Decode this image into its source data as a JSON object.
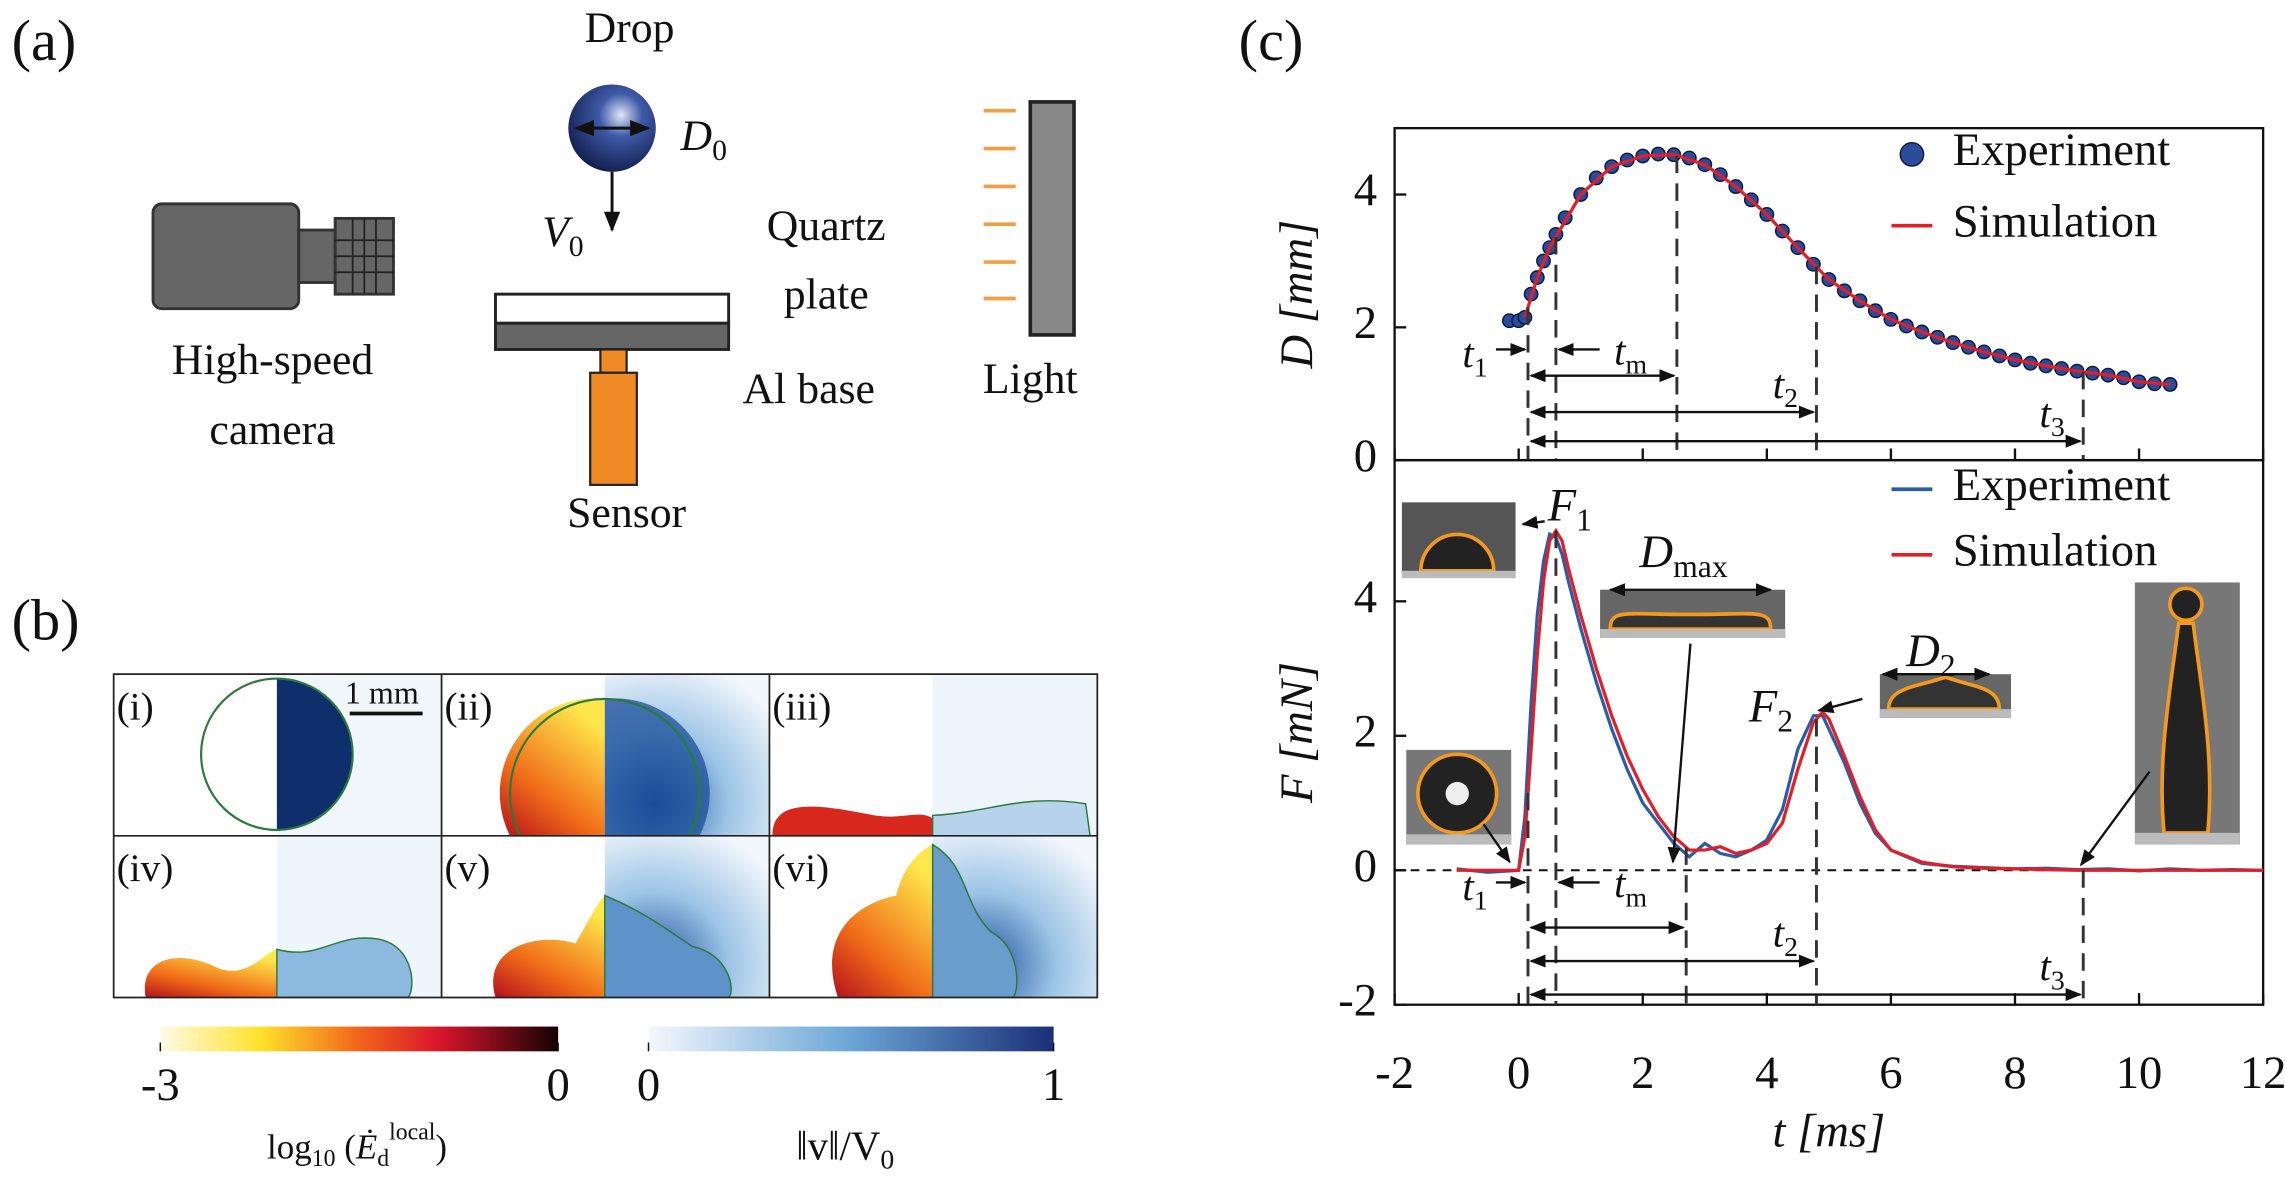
{
  "panel_a": {
    "label": "(a)",
    "drop": "Drop",
    "diameter": {
      "main": "D",
      "sub": "0"
    },
    "velocity": {
      "main": "V",
      "sub": "0"
    },
    "plate": [
      "Quartz",
      "plate"
    ],
    "camera": [
      "High-speed",
      "camera"
    ],
    "base": "Al base",
    "light": "Light",
    "sensor": "Sensor"
  },
  "panel_b": {
    "label": "(b)",
    "subpanels": [
      "(i)",
      "(ii)",
      "(iii)",
      "(iv)",
      "(v)",
      "(vi)"
    ],
    "scale_bar": "1 mm",
    "colorbars": [
      {
        "ticks": [
          -3,
          0
        ],
        "label": {
          "text": "log",
          "sub": "10",
          "open": " (",
          "expr": "Ė",
          "expr_sub": "d",
          "expr_sup": "local",
          "close": ")"
        }
      },
      {
        "ticks": [
          0,
          1
        ],
        "label": {
          "text": "‖v‖/V",
          "sub": "0"
        }
      }
    ]
  },
  "panel_c": {
    "label": "(c)"
  },
  "chart_data": [
    {
      "type": "line",
      "ylabel": "D [mm]",
      "xlim": [
        -2,
        12
      ],
      "ylim": [
        0,
        5
      ],
      "yticks": [
        0,
        2,
        4
      ],
      "series": [
        {
          "name": "Experiment",
          "color": "#2b4c9b",
          "marker": "circle",
          "x": [
            -0.15,
            0,
            0.1,
            0.2,
            0.3,
            0.4,
            0.5,
            0.6,
            0.75,
            1,
            1.25,
            1.5,
            1.75,
            2,
            2.25,
            2.5,
            2.75,
            3,
            3.25,
            3.5,
            3.75,
            4,
            4.25,
            4.5,
            4.75,
            5,
            5.25,
            5.5,
            5.75,
            6,
            6.25,
            6.5,
            6.75,
            7,
            7.25,
            7.5,
            7.75,
            8,
            8.25,
            8.5,
            8.75,
            9,
            9.25,
            9.5,
            9.75,
            10,
            10.25,
            10.5
          ],
          "values": [
            2.1,
            2.1,
            2.15,
            2.5,
            2.75,
            3.0,
            3.2,
            3.4,
            3.65,
            4.0,
            4.25,
            4.42,
            4.52,
            4.58,
            4.61,
            4.6,
            4.55,
            4.45,
            4.3,
            4.12,
            3.92,
            3.7,
            3.45,
            3.2,
            2.95,
            2.72,
            2.55,
            2.4,
            2.25,
            2.12,
            2.02,
            1.93,
            1.85,
            1.77,
            1.7,
            1.63,
            1.57,
            1.51,
            1.46,
            1.42,
            1.38,
            1.34,
            1.31,
            1.28,
            1.24,
            1.18,
            1.15,
            1.14
          ]
        },
        {
          "name": "Simulation",
          "color": "#e41e26",
          "x": [
            0.1,
            0.3,
            0.5,
            1,
            1.5,
            2,
            2.5,
            3,
            3.5,
            4,
            4.5,
            5,
            5.5,
            6,
            6.5,
            7,
            7.5,
            8,
            8.5,
            9,
            9.5,
            10,
            10.5
          ],
          "values": [
            2.15,
            2.75,
            3.2,
            4.0,
            4.42,
            4.58,
            4.6,
            4.45,
            4.12,
            3.7,
            3.2,
            2.72,
            2.4,
            2.12,
            1.93,
            1.77,
            1.63,
            1.51,
            1.42,
            1.34,
            1.28,
            1.18,
            1.14
          ]
        }
      ],
      "vlines": [
        0.15,
        0.6,
        2.55,
        4.8,
        9.1
      ],
      "times": [
        {
          "main": "t",
          "sub": "1"
        },
        {
          "main": "t",
          "sub": "m"
        },
        {
          "main": "t",
          "sub": "2"
        },
        {
          "main": "t",
          "sub": "3"
        }
      ]
    },
    {
      "type": "line",
      "ylabel": "F [mN]",
      "xlabel": "t [ms]",
      "xlim": [
        -2,
        12
      ],
      "ylim": [
        -2,
        6.1
      ],
      "yticks": [
        -2,
        0,
        2,
        4
      ],
      "xticks": [
        -2,
        0,
        2,
        4,
        6,
        8,
        10,
        12
      ],
      "x": [
        -1,
        -0.5,
        0,
        0.1,
        0.2,
        0.3,
        0.4,
        0.5,
        0.6,
        0.7,
        0.8,
        1,
        1.25,
        1.5,
        1.75,
        2,
        2.25,
        2.5,
        2.75,
        3,
        3.25,
        3.5,
        3.75,
        4,
        4.25,
        4.5,
        4.75,
        4.9,
        5,
        5.25,
        5.5,
        5.75,
        6,
        6.5,
        7,
        7.5,
        8,
        8.5,
        9,
        9.5,
        10,
        10.5,
        11,
        11.5,
        12
      ],
      "series": [
        {
          "name": "Experiment",
          "color": "#2a5ca8",
          "values": [
            0.02,
            -0.03,
            0,
            0.8,
            2.5,
            3.8,
            4.6,
            5.0,
            4.95,
            4.7,
            4.3,
            3.6,
            2.8,
            2.1,
            1.5,
            1.0,
            0.7,
            0.4,
            0.2,
            0.4,
            0.25,
            0.2,
            0.3,
            0.45,
            0.9,
            1.8,
            2.3,
            2.3,
            2.1,
            1.6,
            1.0,
            0.55,
            0.3,
            0.1,
            0.06,
            0.04,
            0.02,
            0.03,
            0.01,
            0.02,
            -0.01,
            0.02,
            0,
            0.01,
            0
          ]
        },
        {
          "name": "Simulation",
          "color": "#e41e26",
          "values": [
            0,
            0,
            0,
            0.5,
            1.8,
            3.2,
            4.3,
            4.9,
            5.05,
            4.9,
            4.5,
            3.8,
            3.0,
            2.3,
            1.7,
            1.2,
            0.8,
            0.5,
            0.3,
            0.3,
            0.35,
            0.25,
            0.3,
            0.4,
            0.7,
            1.5,
            2.2,
            2.35,
            2.25,
            1.7,
            1.1,
            0.6,
            0.3,
            0.12,
            0.05,
            0.03,
            0.02,
            0.01,
            0,
            0,
            0,
            0,
            0,
            0,
            0
          ]
        }
      ],
      "vlines": [
        0.15,
        0.6,
        2.7,
        4.8,
        9.1
      ],
      "times": [
        {
          "main": "t",
          "sub": "1"
        },
        {
          "main": "t",
          "sub": "m"
        },
        {
          "main": "t",
          "sub": "2"
        },
        {
          "main": "t",
          "sub": "3"
        }
      ],
      "peaks": [
        {
          "main": "F",
          "sub": "1"
        },
        {
          "main": "F",
          "sub": "2"
        }
      ],
      "widths": [
        {
          "main": "D",
          "sub": "max"
        },
        {
          "main": "D",
          "sub": "2"
        }
      ]
    }
  ]
}
